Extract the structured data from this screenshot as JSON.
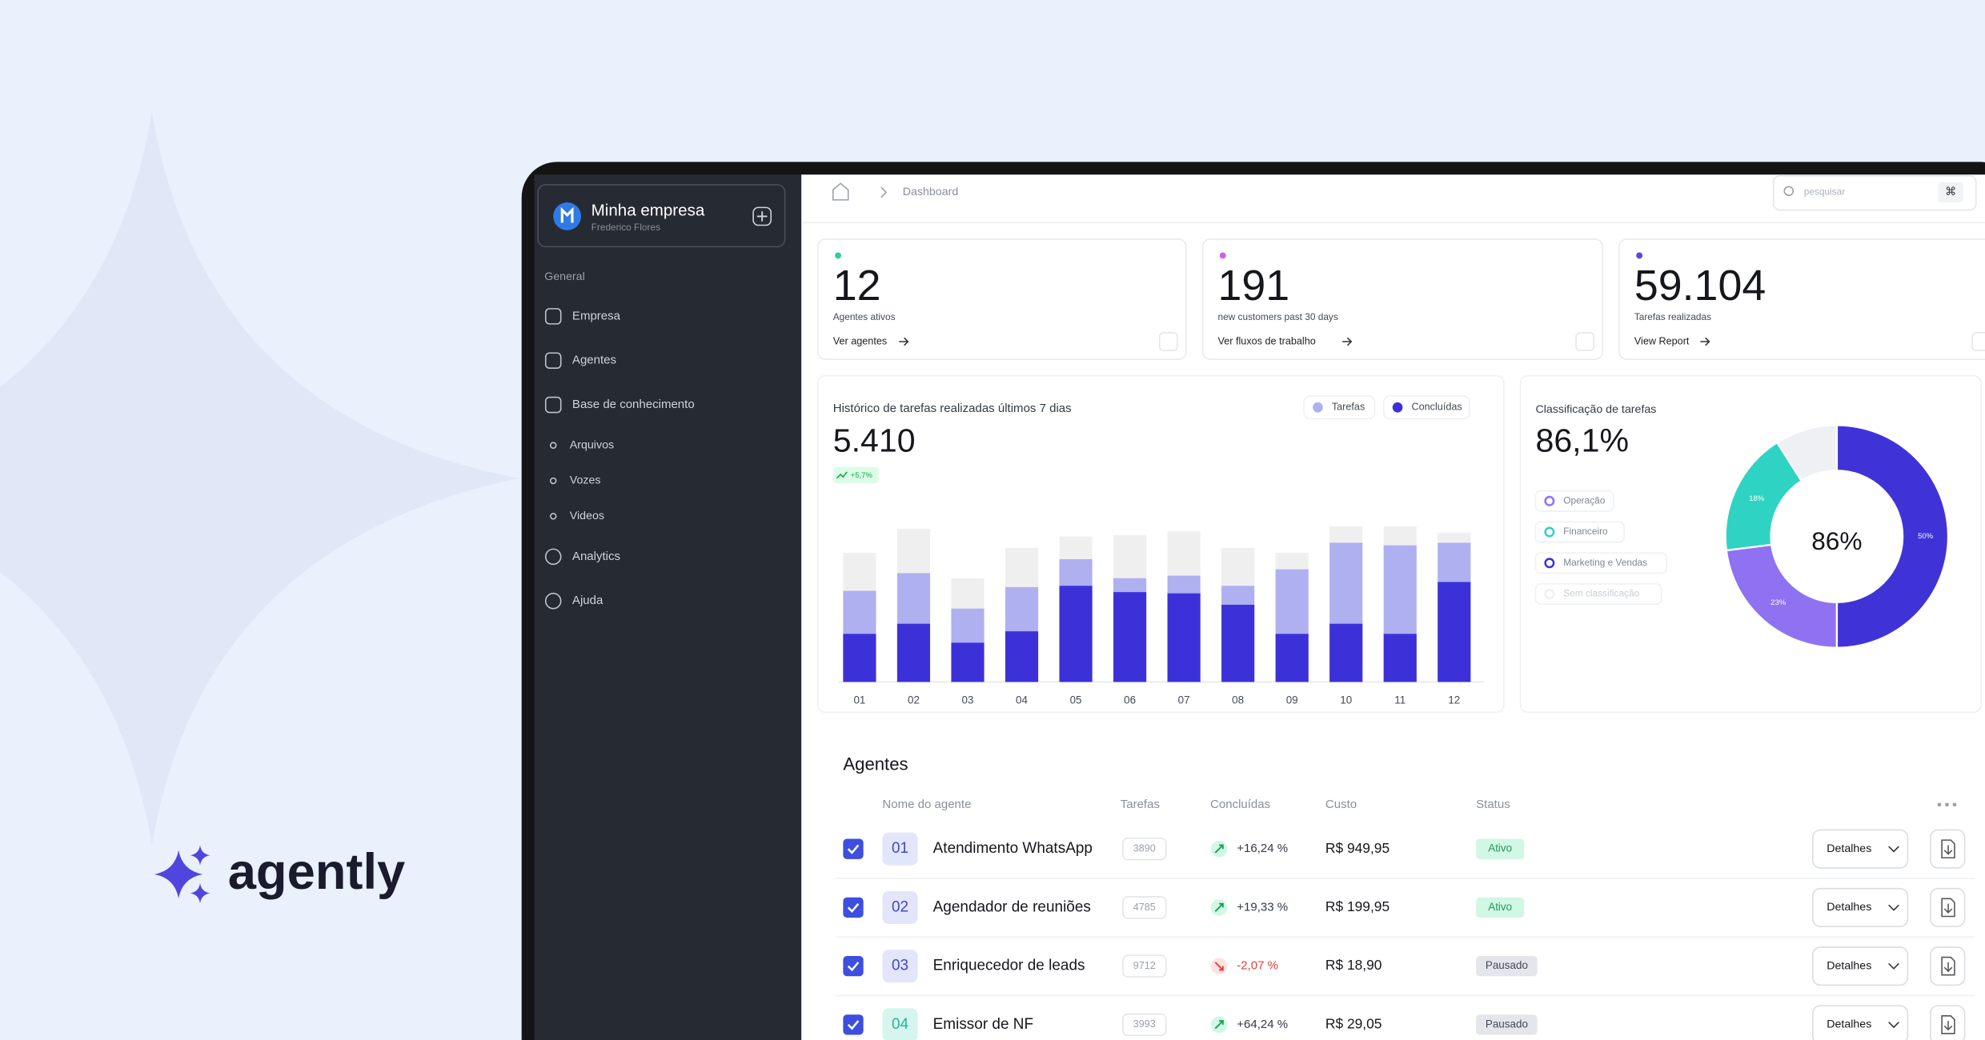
{
  "brand": "agently",
  "sidebar": {
    "company": "Minha empresa",
    "user": "Frederico Flores",
    "section": "General",
    "items": [
      "Empresa",
      "Agentes",
      "Base de conhecimento"
    ],
    "subitems": [
      "Arquivos",
      "Vozes",
      "Videos"
    ],
    "items2": [
      "Analytics",
      "Ajuda"
    ]
  },
  "breadcrumb": "Dashboard",
  "search": {
    "placeholder": "pesquisar",
    "shortcut": "⌘"
  },
  "kpis": [
    {
      "value": "12",
      "label": "Agentes ativos",
      "link": "Ver agentes",
      "color": "#2fd08f"
    },
    {
      "value": "191",
      "label": "new customers past 30 days",
      "link": "Ver fluxos de trabalho",
      "color": "#d65cf0"
    },
    {
      "value": "59.104",
      "label": "Tarefas realizadas",
      "link": "View Report",
      "color": "#5a48e0"
    }
  ],
  "chart_data": [
    {
      "type": "bar",
      "title": "Histórico de tarefas realizadas últimos 7 dias",
      "subtitle": "5.410",
      "annotation": "+5,7%",
      "categories": [
        "01",
        "02",
        "03",
        "04",
        "05",
        "06",
        "07",
        "08",
        "09",
        "10",
        "11",
        "12"
      ],
      "ylim": [
        0,
        130
      ],
      "series": [
        {
          "color": "#efefef",
          "values": [
            102,
            121,
            82,
            106,
            115,
            116,
            119,
            106,
            102,
            123,
            123,
            118
          ]
        },
        {
          "name": "Tarefas",
          "color": "#aeb0f0",
          "values": [
            72,
            86,
            58,
            75,
            97,
            82,
            84,
            76,
            89,
            110,
            108,
            110
          ]
        },
        {
          "name": "Concluídas",
          "color": "#3c31d9",
          "values": [
            38,
            46,
            31,
            40,
            76,
            71,
            70,
            61,
            38,
            46,
            38,
            79
          ]
        }
      ]
    },
    {
      "type": "pie",
      "title": "Classificação de tarefas",
      "subtitle": "86,1%",
      "annotation": "86%",
      "categories": [
        "Marketing e Vendas",
        "Operação",
        "Financeiro",
        "Sem classificação"
      ],
      "values": [
        50,
        23,
        18,
        9
      ],
      "value_labels": [
        "50%",
        "23%",
        "18%",
        null
      ],
      "colors": [
        "#3f33d8",
        "#8e72f2",
        "#2fd3c3",
        "#eef0f4"
      ]
    }
  ],
  "table": {
    "title": "Agentes",
    "columns": [
      "Nome do agente",
      "Tarefas",
      "Concluídas",
      "Custo",
      "Status"
    ],
    "rows": [
      {
        "id": "01",
        "name": "Atendimento WhatsApp",
        "tasks": "3890",
        "change": "+16,24 %",
        "cost": "R$ 949,95",
        "status": "Ativo",
        "action": "Detalhes"
      },
      {
        "id": "02",
        "name": "Agendador de reuniões",
        "tasks": "4785",
        "change": "+19,33 %",
        "cost": "R$ 199,95",
        "status": "Ativo",
        "action": "Detalhes"
      },
      {
        "id": "03",
        "name": "Enriquecedor de leads",
        "tasks": "9712",
        "change": "-2,07 %",
        "cost": "R$ 18,90",
        "status": "Pausado",
        "action": "Detalhes"
      },
      {
        "id": "04",
        "name": "Emissor de NF",
        "tasks": "3993",
        "change": "+64,24 %",
        "cost": "R$ 29,05",
        "status": "Pausado",
        "action": "Detalhes"
      }
    ]
  }
}
